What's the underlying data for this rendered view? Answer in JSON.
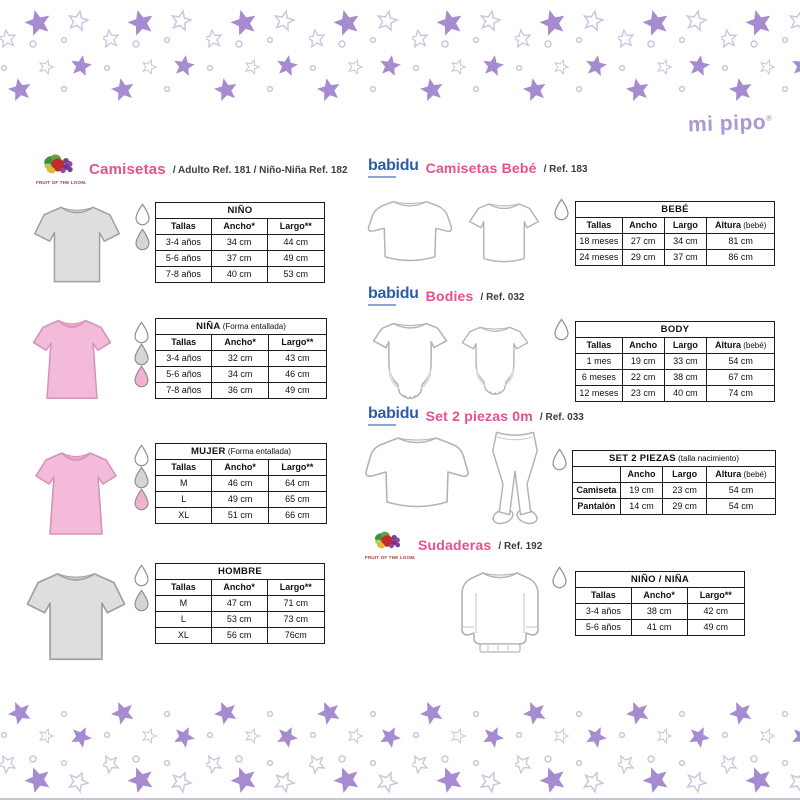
{
  "page": {
    "logo_text": "mi pipo",
    "registered_mark": "®"
  },
  "logos": {
    "fruit_of_the_loom": "FRUIT OF THE LOOM.",
    "babidu": "babidu"
  },
  "colors": {
    "heading_pink": "#e94f8f",
    "subtitle_dark": "#3d3d3d",
    "babidu_blue": "#2f5da9",
    "mipipo_purple": "#ab97d4",
    "star_purple": "#a78bd0",
    "star_outline": "#ccc5de",
    "table_border": "#1c1c1c",
    "drop_white": "#ffffff",
    "drop_gray": "#d5d5d5",
    "drop_pink": "#f1b2d0",
    "garment_gray": "#dedede",
    "garment_pink": "#f4bad9"
  },
  "sections": {
    "camisetas": {
      "title": "Camisetas",
      "subtitle": "/ Adulto Ref. 181 / Niño-Niña Ref. 182",
      "brand": "fruit-of-the-loom"
    },
    "camisetas_bebe": {
      "title": "Camisetas Bebé",
      "subtitle": "/ Ref. 183",
      "brand": "babidu"
    },
    "bodies": {
      "title": "Bodies",
      "subtitle": "/ Ref. 032",
      "brand": "babidu"
    },
    "set_2_piezas": {
      "title": "Set 2 piezas 0m",
      "subtitle": "/ Ref. 033",
      "brand": "babidu"
    },
    "sudaderas": {
      "title": "Sudaderas",
      "subtitle": "/ Ref. 192",
      "brand": "fruit-of-the-loom"
    }
  },
  "tables": {
    "nino": {
      "title": "NIÑO",
      "columns": [
        "Tallas",
        "Ancho*",
        "Largo**"
      ],
      "rows": [
        [
          "3-4 años",
          "34 cm",
          "44 cm"
        ],
        [
          "5-6 años",
          "37 cm",
          "49 cm"
        ],
        [
          "7-8 años",
          "40 cm",
          "53 cm"
        ]
      ]
    },
    "nina": {
      "title": "NIÑA",
      "note": "(Forma entallada)",
      "columns": [
        "Tallas",
        "Ancho*",
        "Largo**"
      ],
      "rows": [
        [
          "3-4 años",
          "32 cm",
          "43 cm"
        ],
        [
          "5-6 años",
          "34 cm",
          "46 cm"
        ],
        [
          "7-8 años",
          "36 cm",
          "49 cm"
        ]
      ]
    },
    "mujer": {
      "title": "MUJER",
      "note": "(Forma entallada)",
      "columns": [
        "Tallas",
        "Ancho*",
        "Largo**"
      ],
      "rows": [
        [
          "M",
          "46 cm",
          "64 cm"
        ],
        [
          "L",
          "49 cm",
          "65 cm"
        ],
        [
          "XL",
          "51 cm",
          "66 cm"
        ]
      ]
    },
    "hombre": {
      "title": "HOMBRE",
      "columns": [
        "Tallas",
        "Ancho*",
        "Largo**"
      ],
      "rows": [
        [
          "M",
          "47 cm",
          "71 cm"
        ],
        [
          "L",
          "53 cm",
          "73 cm"
        ],
        [
          "XL",
          "56 cm",
          "76cm"
        ]
      ]
    },
    "bebe": {
      "title": "BEBÉ",
      "columns": [
        "Tallas",
        "Ancho",
        "Largo",
        "Altura (bebé)"
      ],
      "rows": [
        [
          "18 meses",
          "27 cm",
          "34 cm",
          "81 cm"
        ],
        [
          "24 meses",
          "29 cm",
          "37 cm",
          "86 cm"
        ]
      ]
    },
    "body": {
      "title": "BODY",
      "columns": [
        "Tallas",
        "Ancho",
        "Largo",
        "Altura (bebé)"
      ],
      "rows": [
        [
          "1 mes",
          "19 cm",
          "33 cm",
          "54 cm"
        ],
        [
          "6 meses",
          "22 cm",
          "38 cm",
          "67 cm"
        ],
        [
          "12 meses",
          "23 cm",
          "40 cm",
          "74 cm"
        ]
      ]
    },
    "set_2_piezas": {
      "title": "SET 2 PIEZAS",
      "note": "(talla nacimiento)",
      "row_header": true,
      "columns": [
        "",
        "Ancho",
        "Largo",
        "Altura (bebé)"
      ],
      "rows": [
        [
          "Camiseta",
          "19 cm",
          "23 cm",
          "54 cm"
        ],
        [
          "Pantalón",
          "14 cm",
          "29 cm",
          "54 cm"
        ]
      ]
    },
    "sudaderas": {
      "title": "NIÑO / NIÑA",
      "columns": [
        "Tallas",
        "Ancho*",
        "Largo**"
      ],
      "rows": [
        [
          "3-4 años",
          "38 cm",
          "42 cm"
        ],
        [
          "5-6 años",
          "41 cm",
          "49 cm"
        ]
      ]
    }
  }
}
